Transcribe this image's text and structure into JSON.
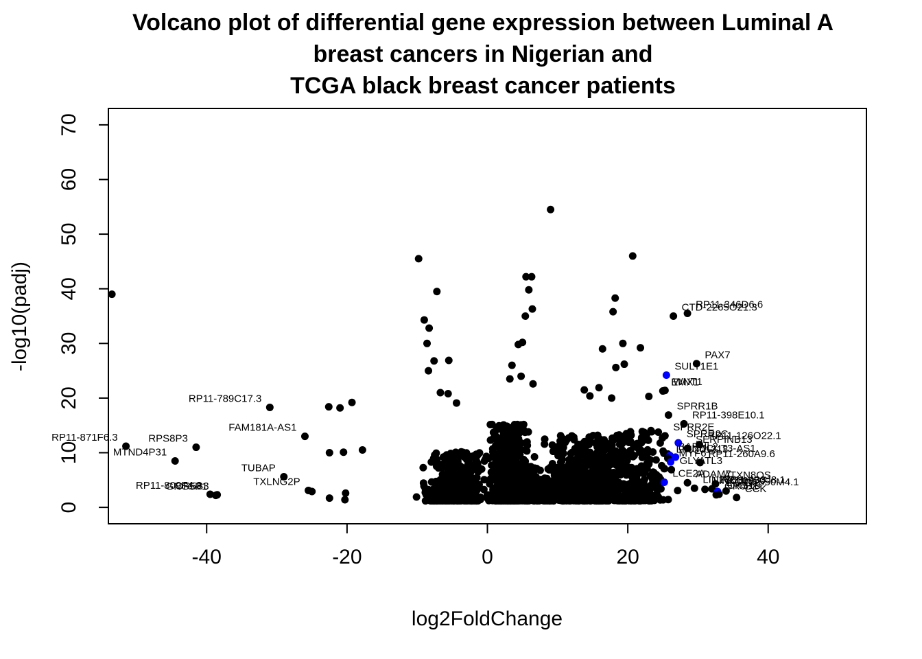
{
  "chart_data": {
    "type": "scatter",
    "title_lines": [
      "Volcano plot of differential gene expression between Luminal A",
      "breast cancers in Nigerian and",
      "TCGA black breast cancer patients"
    ],
    "xlabel": "log2FoldChange",
    "ylabel": "-log10(padj)",
    "xlim": [
      -54,
      54
    ],
    "ylim": [
      -3,
      73
    ],
    "x_ticks": [
      -40,
      -20,
      0,
      20,
      40
    ],
    "y_ticks": [
      0,
      10,
      20,
      30,
      40,
      50,
      60,
      70
    ],
    "grid": false,
    "legend": "none",
    "colors": {
      "non_significant": "#000000",
      "highlighted": "#0000ff"
    },
    "labeled_points": [
      {
        "label": "RP11-346D6.6",
        "x": 28.5,
        "y": 35.5,
        "color": "#000000"
      },
      {
        "label": "CTD-2265O21.3",
        "x": 26.5,
        "y": 35.0,
        "color": "#000000"
      },
      {
        "label": "PAX7",
        "x": 29.8,
        "y": 26.3,
        "color": "#000000"
      },
      {
        "label": "SULT1E1",
        "x": 25.5,
        "y": 24.2,
        "color": "#0000ff"
      },
      {
        "label": "WNT1",
        "x": 25.3,
        "y": 21.4,
        "color": "#000000"
      },
      {
        "label": "EMX1",
        "x": 25.0,
        "y": 21.3,
        "color": "#000000"
      },
      {
        "label": "SPRR1B",
        "x": 25.8,
        "y": 16.9,
        "color": "#000000"
      },
      {
        "label": "RP11-398E10.1",
        "x": 28.0,
        "y": 15.3,
        "color": "#000000"
      },
      {
        "label": "SPRR2E",
        "x": 25.3,
        "y": 13.1,
        "color": "#000000"
      },
      {
        "label": "RP11-126O22.1",
        "x": 30.2,
        "y": 11.5,
        "color": "#000000"
      },
      {
        "label": "SPRR2C",
        "x": 27.2,
        "y": 11.8,
        "color": "#0000ff"
      },
      {
        "label": "SERPINB13",
        "x": 28.5,
        "y": 10.8,
        "color": "#000000"
      },
      {
        "label": "BARHL2",
        "x": 26.0,
        "y": 9.5,
        "color": "#0000ff"
      },
      {
        "label": "LINC01213",
        "x": 25.7,
        "y": 9.0,
        "color": "#000000"
      },
      {
        "label": "ONECUT3-AS1",
        "x": 26.8,
        "y": 9.2,
        "color": "#0000ff"
      },
      {
        "label": "MYF6",
        "x": 26.1,
        "y": 8.3,
        "color": "#0000ff"
      },
      {
        "label": "RP11-260A9.6",
        "x": 30.3,
        "y": 8.2,
        "color": "#000000"
      },
      {
        "label": "GLYATL3",
        "x": 26.2,
        "y": 6.9,
        "color": "#000000"
      },
      {
        "label": "ATXN8OS",
        "x": 32.5,
        "y": 4.3,
        "color": "#000000"
      },
      {
        "label": "LCE2A",
        "x": 25.2,
        "y": 4.6,
        "color": "#0000ff"
      },
      {
        "label": "ADAM7",
        "x": 28.5,
        "y": 4.5,
        "color": "#000000"
      },
      {
        "label": "LIN28B",
        "x": 29.5,
        "y": 3.5,
        "color": "#000000"
      },
      {
        "label": "RP11-433J8.1",
        "x": 32.0,
        "y": 3.4,
        "color": "#000000"
      },
      {
        "label": "LINC00890",
        "x": 31.0,
        "y": 3.3,
        "color": "#000000"
      },
      {
        "label": "CTC-550M4.1",
        "x": 34.0,
        "y": 3.0,
        "color": "#000000"
      },
      {
        "label": "LYPD6",
        "x": 32.8,
        "y": 2.9,
        "color": "#0000ff"
      },
      {
        "label": "CKS1B",
        "x": 33.0,
        "y": 2.4,
        "color": "#000000"
      },
      {
        "label": "OR6B1",
        "x": 32.6,
        "y": 2.3,
        "color": "#000000"
      },
      {
        "label": "CCK",
        "x": 35.5,
        "y": 1.8,
        "color": "#000000"
      },
      {
        "label": "RP11-789C17.3",
        "x": -31.0,
        "y": 18.3,
        "color": "#000000"
      },
      {
        "label": "FAM181A-AS1",
        "x": -26.0,
        "y": 13.0,
        "color": "#000000"
      },
      {
        "label": "RPS8P3",
        "x": -41.5,
        "y": 11.0,
        "color": "#000000"
      },
      {
        "label": "MTND4P31",
        "x": -44.5,
        "y": 8.5,
        "color": "#000000"
      },
      {
        "label": "RP11-871F6.3",
        "x": -51.5,
        "y": 11.2,
        "color": "#000000"
      },
      {
        "label": "TUBAP",
        "x": -29.0,
        "y": 5.6,
        "color": "#000000"
      },
      {
        "label": "TXLNG2P",
        "x": -25.5,
        "y": 3.1,
        "color": "#000000"
      },
      {
        "label": "RP11-809F4.3",
        "x": -39.5,
        "y": 2.4,
        "color": "#000000"
      },
      {
        "label": "OR5B3",
        "x": -38.5,
        "y": 2.3,
        "color": "#000000"
      },
      {
        "label": "GNG5P1",
        "x": -38.7,
        "y": 2.2,
        "color": "#000000"
      }
    ],
    "unlabeled_points": [
      [
        9.0,
        54.5
      ],
      [
        -9.8,
        45.5
      ],
      [
        20.7,
        46.0
      ],
      [
        -53.5,
        39.0
      ],
      [
        -7.2,
        39.5
      ],
      [
        5.5,
        42.2
      ],
      [
        6.3,
        42.2
      ],
      [
        5.9,
        39.8
      ],
      [
        6.4,
        36.3
      ],
      [
        5.4,
        35.0
      ],
      [
        18.2,
        38.3
      ],
      [
        17.9,
        35.8
      ],
      [
        -9.0,
        34.3
      ],
      [
        -8.3,
        32.8
      ],
      [
        -8.6,
        30.0
      ],
      [
        -7.6,
        26.8
      ],
      [
        -5.5,
        26.9
      ],
      [
        -8.4,
        25.0
      ],
      [
        4.4,
        29.8
      ],
      [
        5.0,
        30.2
      ],
      [
        3.5,
        26.0
      ],
      [
        3.2,
        23.5
      ],
      [
        4.8,
        24.0
      ],
      [
        6.5,
        22.6
      ],
      [
        19.3,
        30.0
      ],
      [
        16.4,
        29.0
      ],
      [
        18.3,
        25.6
      ],
      [
        19.5,
        26.2
      ],
      [
        21.8,
        29.2
      ],
      [
        23.0,
        20.3
      ],
      [
        13.8,
        21.5
      ],
      [
        14.6,
        20.4
      ],
      [
        15.9,
        21.9
      ],
      [
        17.7,
        20.0
      ],
      [
        -6.7,
        21.0
      ],
      [
        -5.6,
        20.8
      ],
      [
        -4.4,
        19.1
      ],
      [
        -22.6,
        18.4
      ],
      [
        -21.0,
        18.2
      ],
      [
        -19.3,
        19.2
      ],
      [
        -22.5,
        10.0
      ],
      [
        -20.5,
        10.1
      ],
      [
        -17.8,
        10.5
      ],
      [
        -22.5,
        1.7
      ],
      [
        -20.2,
        2.6
      ],
      [
        -20.3,
        1.4
      ],
      [
        -25.0,
        2.9
      ],
      [
        -10.1,
        1.9
      ],
      [
        10.5,
        10.1
      ],
      [
        10.0,
        5.2
      ]
    ]
  }
}
